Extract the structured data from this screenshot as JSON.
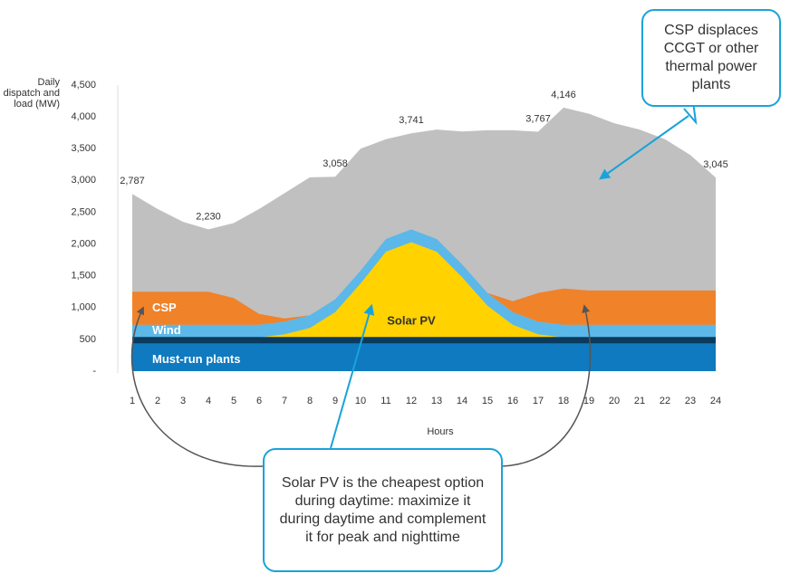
{
  "chart_data": {
    "type": "stacked_area",
    "y_label": "Daily dispatch and load (MW)",
    "x_label": "Hours",
    "categories": [
      "1",
      "2",
      "3",
      "4",
      "5",
      "6",
      "7",
      "8",
      "9",
      "10",
      "11",
      "12",
      "13",
      "14",
      "15",
      "16",
      "17",
      "18",
      "19",
      "20",
      "21",
      "22",
      "23",
      "24"
    ],
    "series": [
      {
        "name": "Must-run plants",
        "color": "#0f7abf",
        "values": [
          530,
          530,
          530,
          530,
          530,
          530,
          530,
          530,
          530,
          530,
          530,
          530,
          530,
          530,
          530,
          530,
          530,
          530,
          530,
          530,
          530,
          530,
          530,
          530
        ]
      },
      {
        "name": "Solar PV",
        "color": "#ffd200",
        "values": [
          0,
          0,
          0,
          0,
          0,
          0,
          50,
          150,
          400,
          850,
          1350,
          1500,
          1350,
          950,
          500,
          200,
          50,
          0,
          0,
          0,
          0,
          0,
          0,
          0
        ]
      },
      {
        "name": "Wind",
        "color": "#5bb8e8",
        "values": [
          200,
          200,
          200,
          200,
          200,
          200,
          200,
          200,
          200,
          200,
          200,
          200,
          200,
          200,
          200,
          200,
          200,
          200,
          200,
          200,
          200,
          200,
          200,
          200
        ]
      },
      {
        "name": "CSP",
        "color": "#f0822a",
        "values": [
          520,
          520,
          520,
          520,
          420,
          170,
          50,
          0,
          0,
          0,
          0,
          0,
          0,
          0,
          0,
          170,
          450,
          570,
          540,
          540,
          540,
          540,
          540,
          540
        ]
      }
    ],
    "load": {
      "color": "#c0c0c0",
      "values": [
        2787,
        2550,
        2350,
        2230,
        2330,
        2550,
        2800,
        3050,
        3058,
        3500,
        3650,
        3741,
        3800,
        3770,
        3790,
        3790,
        3767,
        4146,
        4050,
        3900,
        3800,
        3650,
        3400,
        3045
      ],
      "value_labels": [
        "2,787",
        null,
        null,
        "2,230",
        null,
        null,
        null,
        null,
        "3,058",
        null,
        null,
        "3,741",
        null,
        null,
        null,
        null,
        "3,767",
        "4,146",
        null,
        null,
        null,
        null,
        null,
        "3,045"
      ]
    },
    "ylim": [
      0,
      4500
    ],
    "yticks": [
      {
        "value": 0,
        "label": "-"
      },
      500,
      {
        "value": 1000,
        "label": "1,000"
      },
      {
        "value": 1500,
        "label": "1,500"
      },
      {
        "value": 2000,
        "label": "2,000"
      },
      {
        "value": 2500,
        "label": "2,500"
      },
      {
        "value": 3000,
        "label": "3,000"
      },
      {
        "value": 3500,
        "label": "3,500"
      },
      {
        "value": 4000,
        "label": "4,000"
      },
      {
        "value": 4500,
        "label": "4,500"
      }
    ],
    "annotations": [
      "CSP displaces CCGT or other thermal power plants",
      "Solar PV is the cheapest option during daytime: maximize it during daytime and complement it for peak and nighttime"
    ]
  }
}
